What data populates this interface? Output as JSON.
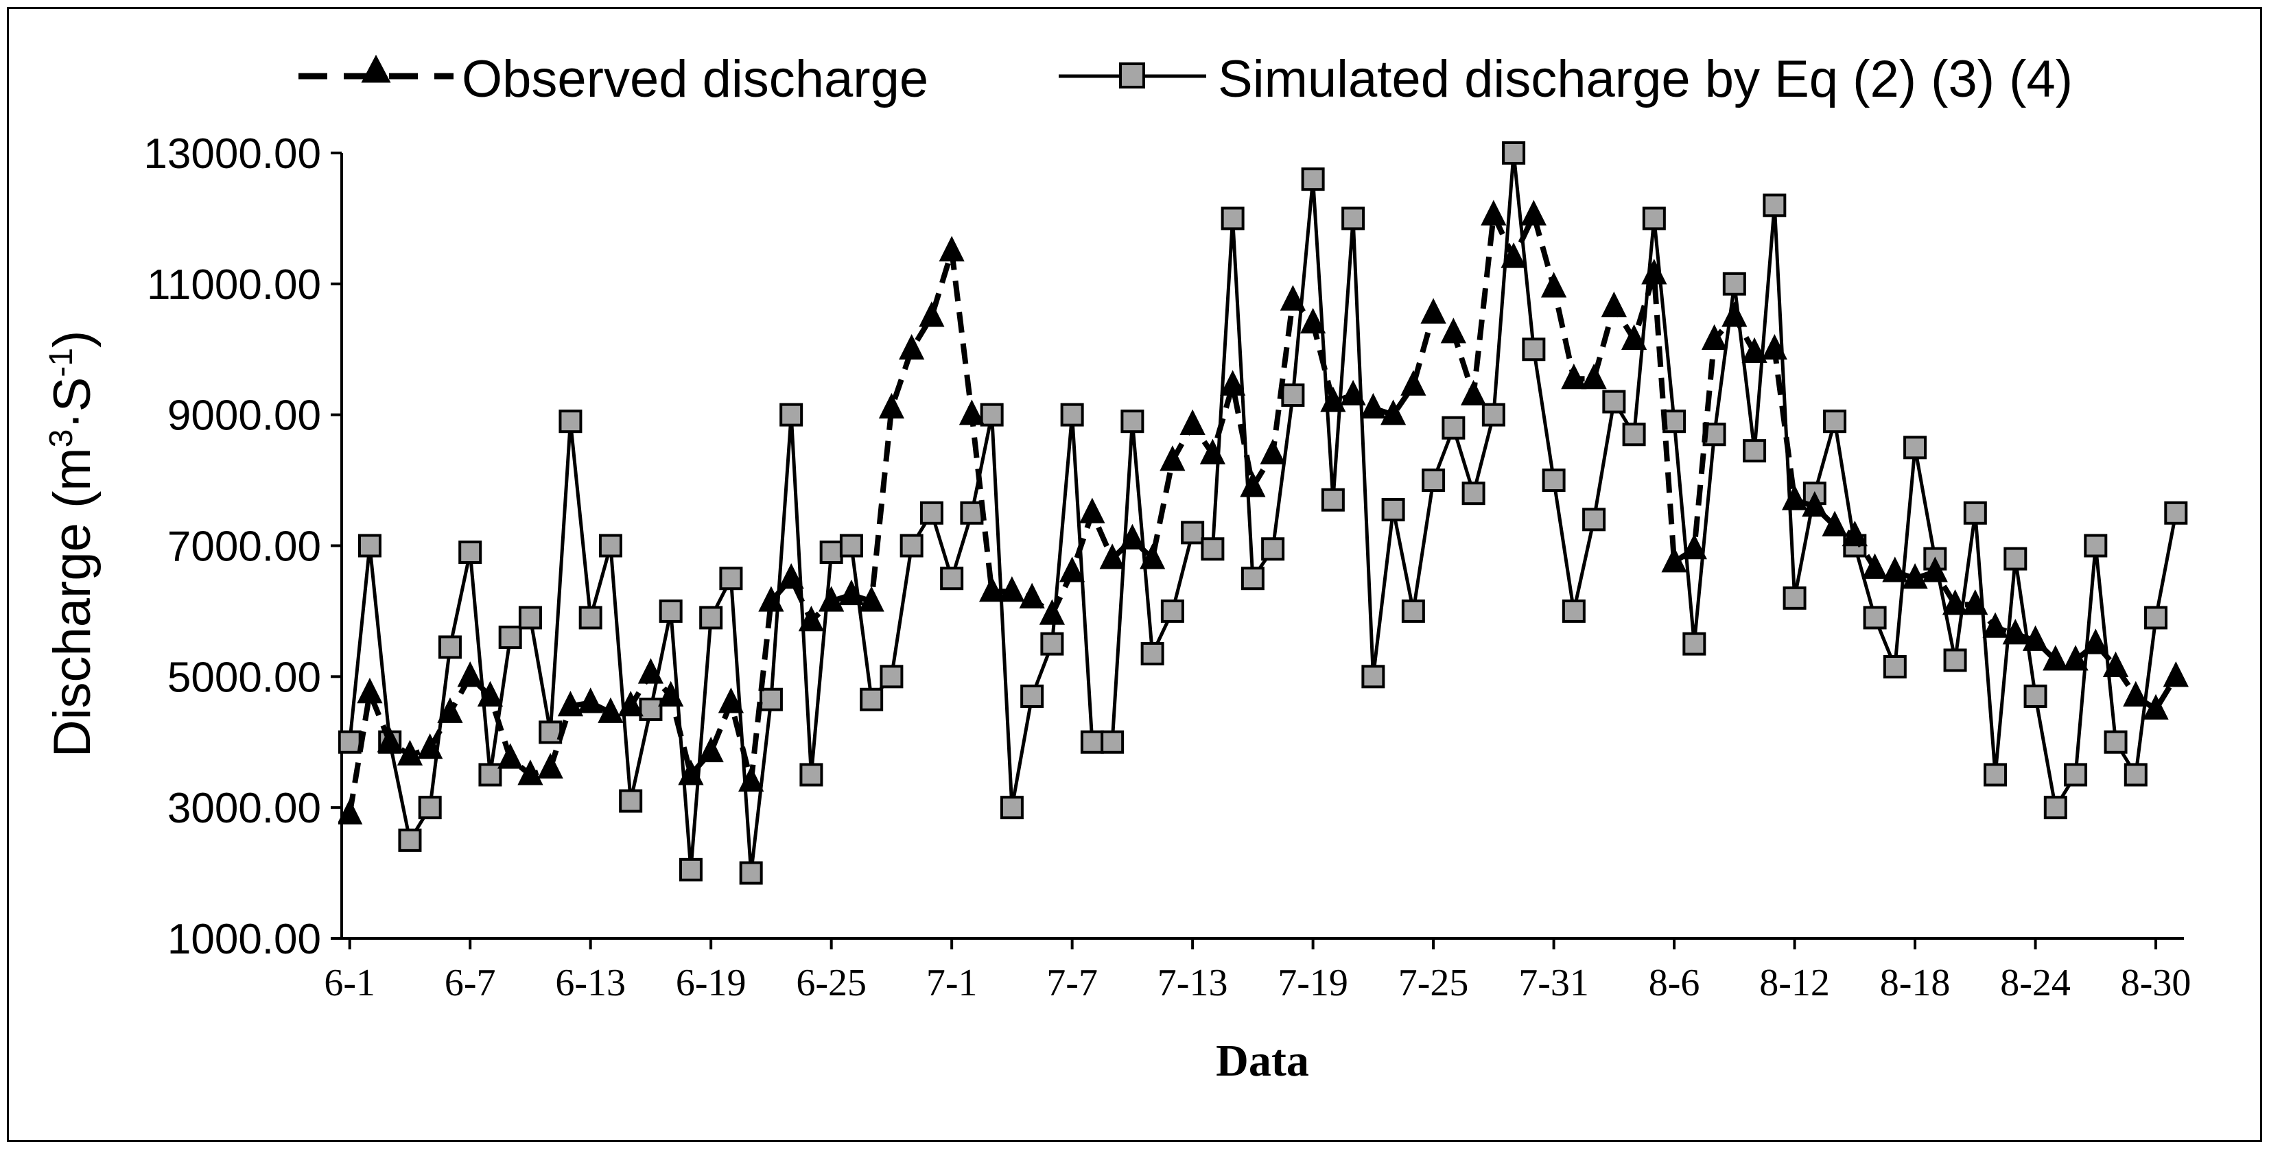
{
  "chart_data": {
    "type": "line",
    "title": "",
    "xlabel": "Data",
    "ylabel_prefix": "Discharge (m",
    "ylabel_sup1": "3",
    "ylabel_mid": "·S",
    "ylabel_sup2": "-1",
    "ylabel_suffix": ")",
    "ylim": [
      1000,
      13000
    ],
    "yticks": [
      "1000.00",
      "3000.00",
      "5000.00",
      "7000.00",
      "9000.00",
      "11000.00",
      "13000.00"
    ],
    "ytick_values": [
      1000,
      3000,
      5000,
      7000,
      9000,
      11000,
      13000
    ],
    "xticks": [
      "6-1",
      "6-7",
      "6-13",
      "6-19",
      "6-25",
      "7-1",
      "7-7",
      "7-13",
      "7-19",
      "7-25",
      "7-31",
      "8-6",
      "8-12",
      "8-18",
      "8-24",
      "8-30"
    ],
    "xtick_positions": [
      1,
      7,
      13,
      19,
      25,
      31,
      37,
      43,
      49,
      55,
      61,
      67,
      73,
      79,
      85,
      91
    ],
    "x_range": [
      0.6,
      92.4
    ],
    "legend_position": "top",
    "series": [
      {
        "name": "Observed discharge",
        "style": "dashed",
        "marker": "triangle",
        "color": "#000000",
        "values": [
          2900,
          4750,
          4000,
          3800,
          3900,
          4450,
          5000,
          4700,
          3750,
          3500,
          3600,
          4550,
          4600,
          4450,
          4550,
          5050,
          4700,
          3500,
          3850,
          4600,
          3400,
          6150,
          6500,
          5850,
          6150,
          6250,
          6150,
          9100,
          10000,
          10500,
          11500,
          9000,
          6300,
          6300,
          6200,
          5950,
          6600,
          7500,
          6800,
          7100,
          6800,
          8300,
          8850,
          8400,
          9450,
          7900,
          8400,
          10750,
          10400,
          9200,
          9300,
          9100,
          9000,
          9450,
          10550,
          10250,
          9300,
          12050,
          11400,
          12050,
          10950,
          9550,
          9550,
          10650,
          10150,
          11150,
          6750,
          6950,
          10150,
          10500,
          9950,
          10000,
          7700,
          7600,
          7300,
          7150,
          6650,
          6600,
          6500,
          6600,
          6100,
          6100,
          5750,
          5650,
          5550,
          5250,
          5250,
          5500,
          5150,
          4700,
          4500,
          5000
        ]
      },
      {
        "name": "Simulated discharge by Eq (2) (3) (4)",
        "style": "solid",
        "marker": "square",
        "color": "#000000",
        "marker_fill": "#a6a6a6",
        "values": [
          4000,
          7000,
          4000,
          2500,
          3000,
          5450,
          6900,
          3500,
          5600,
          5900,
          4150,
          8900,
          5900,
          7000,
          3100,
          4500,
          6000,
          2050,
          5900,
          6500,
          2000,
          4650,
          9000,
          3500,
          6900,
          7000,
          4650,
          5000,
          7000,
          7500,
          6500,
          7500,
          9000,
          3000,
          4700,
          5500,
          9000,
          4000,
          4000,
          8900,
          5350,
          6000,
          7200,
          6950,
          12000,
          6500,
          6950,
          9300,
          12600,
          7700,
          12000,
          5000,
          7550,
          6000,
          8000,
          8800,
          7800,
          9000,
          13000,
          10000,
          8000,
          6000,
          7400,
          9200,
          8700,
          12000,
          8900,
          5500,
          8700,
          11000,
          8450,
          12200,
          6200,
          7800,
          8900,
          7000,
          5900,
          5150,
          8500,
          6800,
          5250,
          7500,
          3500,
          6800,
          4700,
          3000,
          3500,
          7000,
          4000,
          3500,
          5900,
          7500
        ]
      }
    ]
  }
}
